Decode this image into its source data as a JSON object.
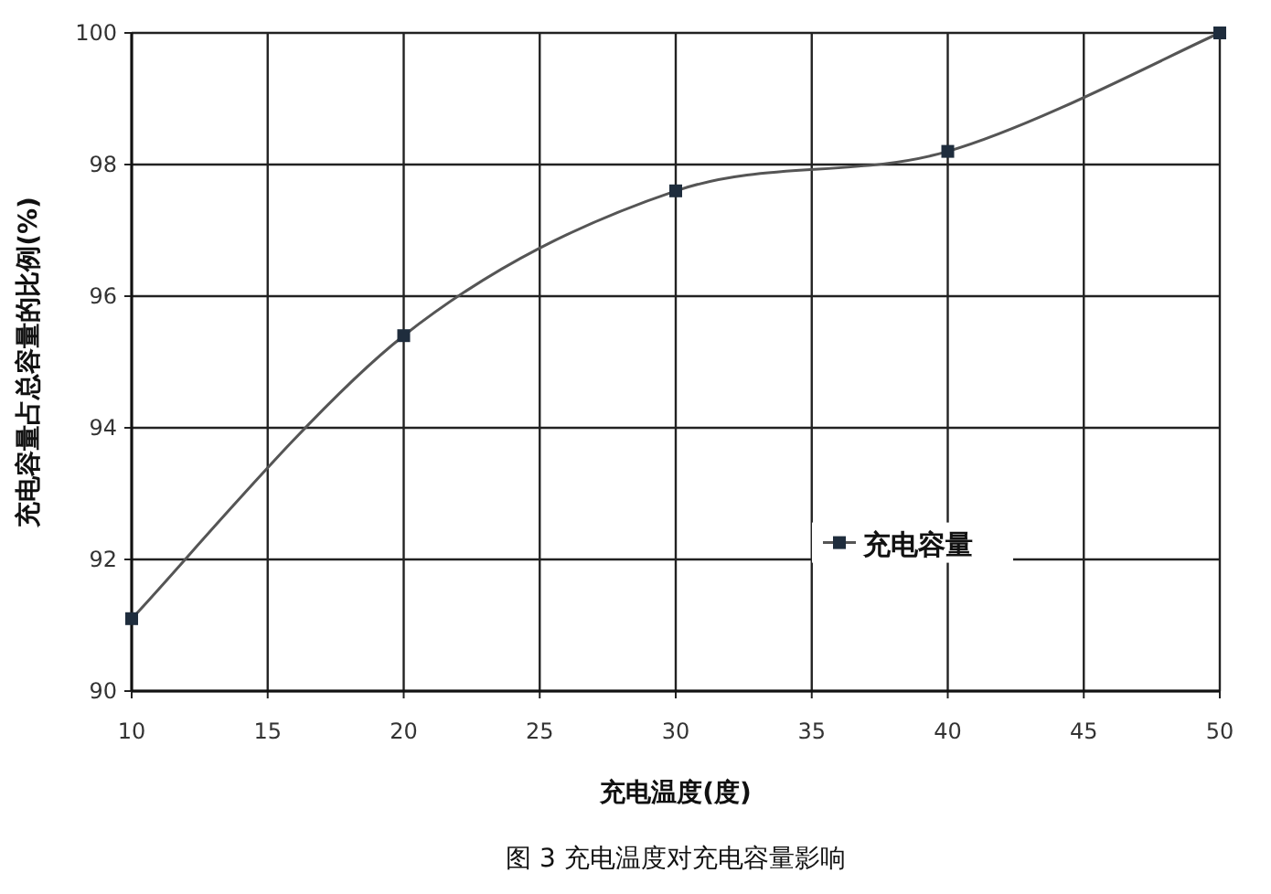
{
  "chart_data": {
    "type": "line",
    "xlabel": "充电温度(度)",
    "ylabel": "充电容量占总容量的比例(%)",
    "annotations": [
      "图 3 充电温度对充电容量影响"
    ],
    "x": [
      10,
      20,
      30,
      40,
      50
    ],
    "series": [
      {
        "name": "充电容量",
        "color": "#1f2d3d",
        "values": [
          91.1,
          95.4,
          97.6,
          98.2,
          100
        ]
      }
    ],
    "xlim": [
      10,
      50
    ],
    "xticks": [
      10,
      15,
      20,
      25,
      30,
      35,
      40,
      45,
      50
    ],
    "ylim": [
      90,
      100
    ],
    "yticks": [
      90,
      92,
      94,
      96,
      98,
      100
    ],
    "grid": true,
    "legend": "right",
    "marker": "square",
    "line_style": "solid"
  }
}
